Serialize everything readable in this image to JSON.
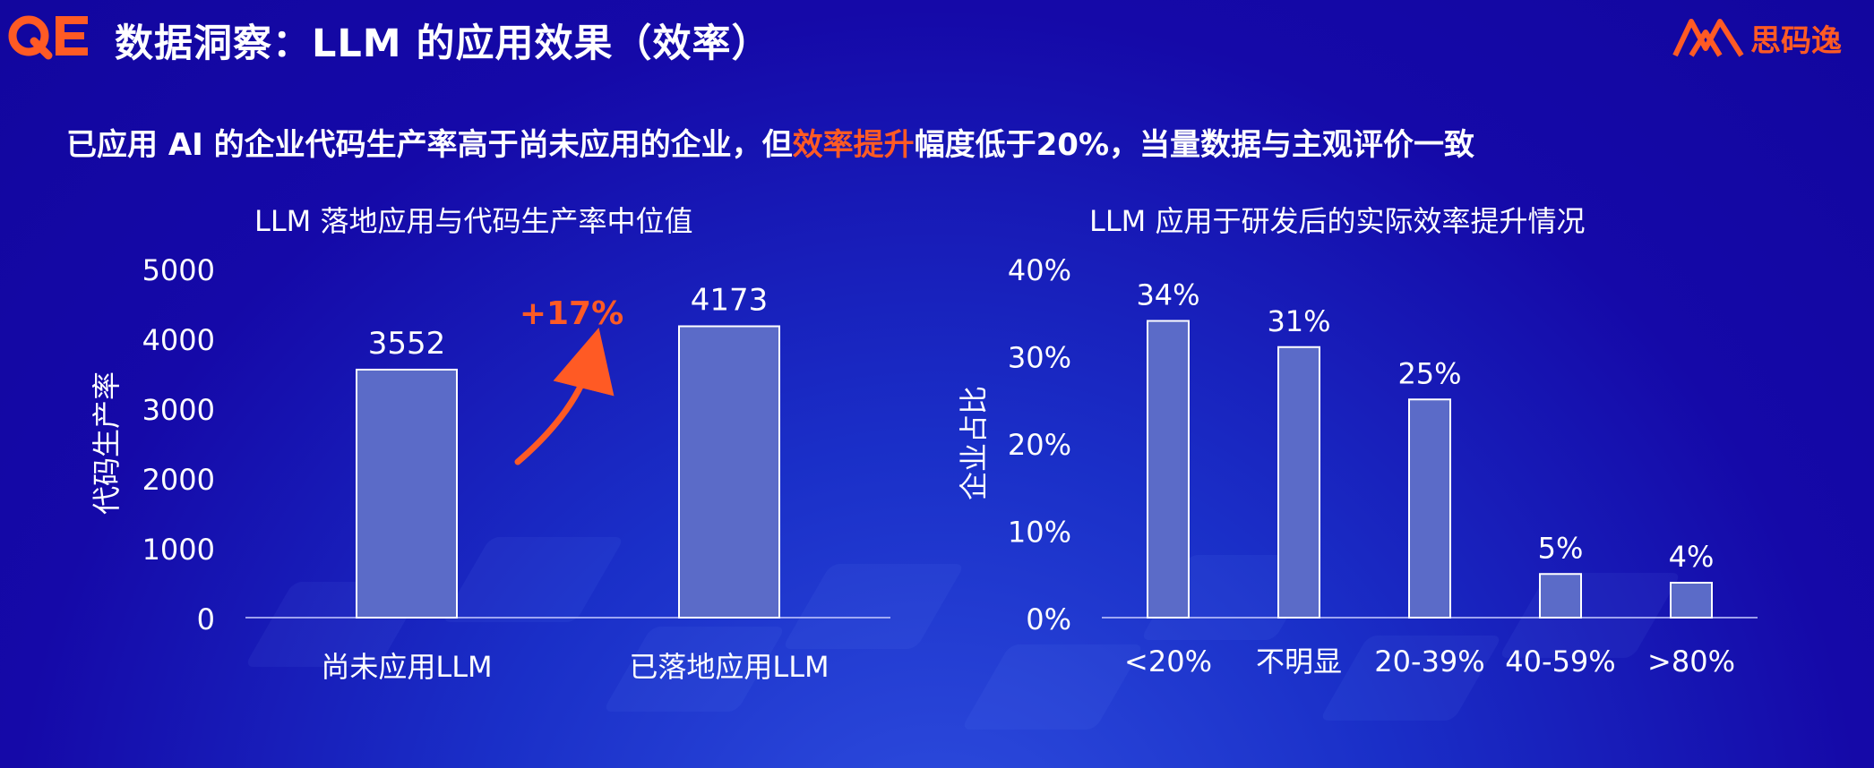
{
  "header": {
    "title": "数据洞察：LLM 的应用效果（效率）",
    "brand_name": "思码逸",
    "logo_left": "QE"
  },
  "subtitle": {
    "part1": "已应用 AI 的企业代码生产率高于尚未应用的企业，但",
    "highlight": "效率提升",
    "part2": "幅度低于20%，当量数据与主观评价一致"
  },
  "colors": {
    "bar": "#5b6bc8",
    "accent": "#ff5a24",
    "background": "#1509a8"
  },
  "chart_data": [
    {
      "type": "bar",
      "title": "LLM 落地应用与代码生产率中位值",
      "ylabel": "代码生产率",
      "xlabel": "",
      "categories": [
        "尚未应用LLM",
        "已落地应用LLM"
      ],
      "values": [
        3552,
        4173
      ],
      "value_labels": [
        "3552",
        "4173"
      ],
      "yticks": [
        0,
        1000,
        2000,
        3000,
        4000,
        5000
      ],
      "ylim": [
        0,
        5000
      ],
      "annotation": "+17%",
      "grid": false,
      "legend": "none"
    },
    {
      "type": "bar",
      "title": "LLM 应用于研发后的实际效率提升情况",
      "ylabel": "企业占比",
      "xlabel": "",
      "categories": [
        "<20%",
        "不明显",
        "20-39%",
        "40-59%",
        ">80%"
      ],
      "values": [
        34,
        31,
        25,
        5,
        4
      ],
      "value_labels": [
        "34%",
        "31%",
        "25%",
        "5%",
        "4%"
      ],
      "yticks": [
        "0%",
        "10%",
        "20%",
        "30%",
        "40%"
      ],
      "ylim": [
        0,
        40
      ],
      "grid": false,
      "legend": "none"
    }
  ]
}
